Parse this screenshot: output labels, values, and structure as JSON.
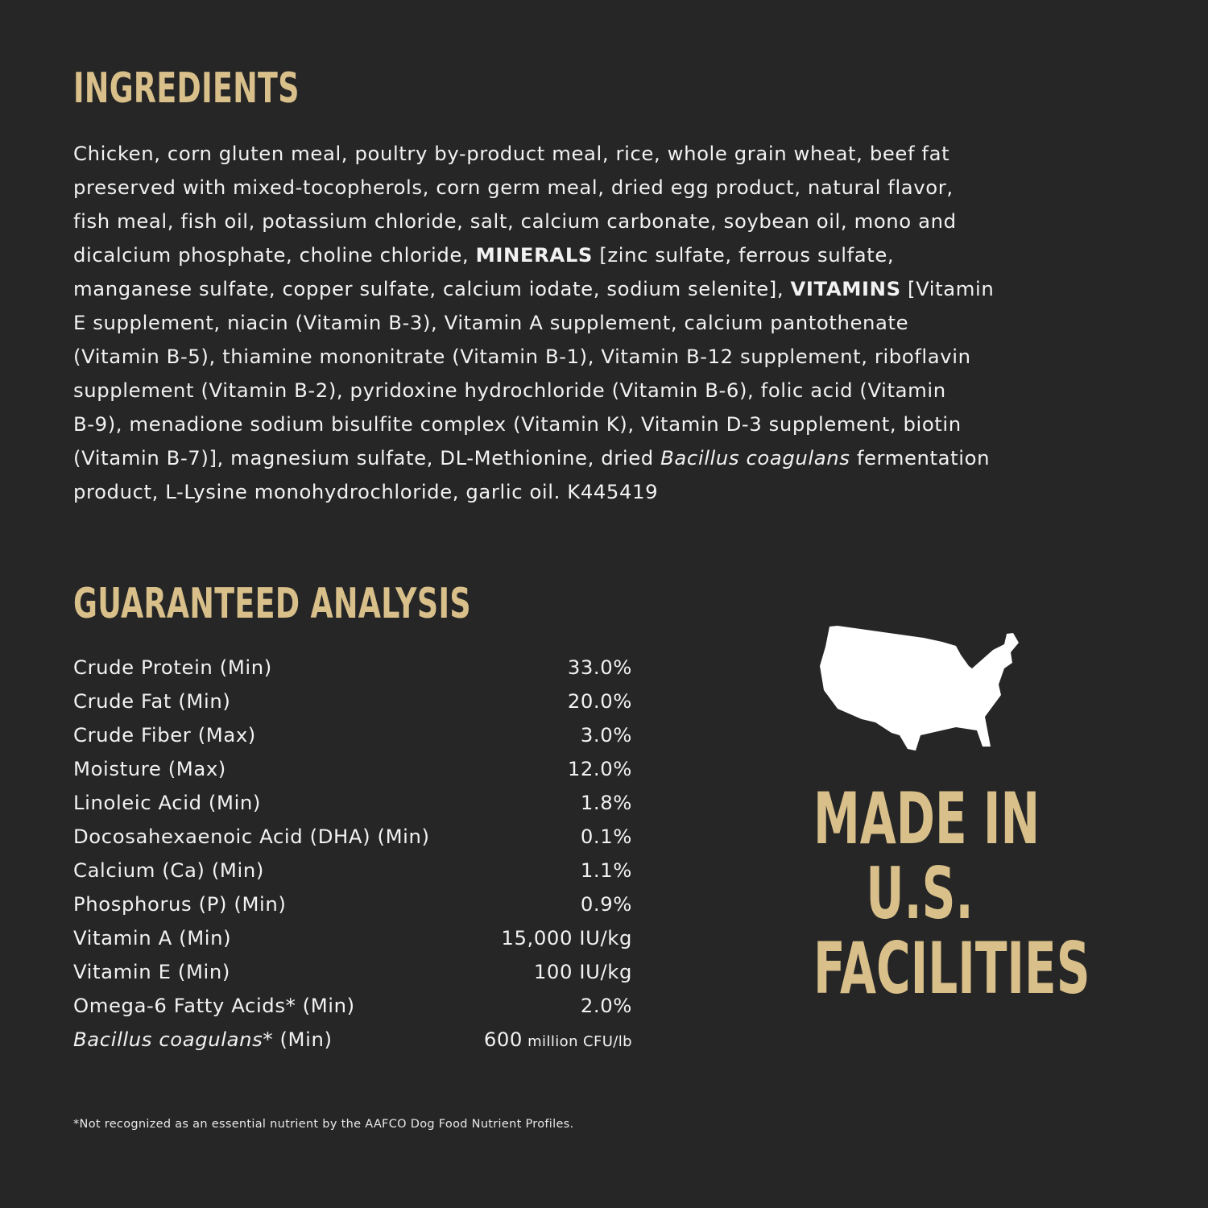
{
  "ingredients": {
    "title": "INGREDIENTS",
    "lines": [
      [
        {
          "t": "Chicken, corn gluten meal, poultry by-product meal, rice, whole grain wheat, beef fat"
        }
      ],
      [
        {
          "t": "preserved with mixed-tocopherols, corn germ meal, dried egg product, natural flavor,"
        }
      ],
      [
        {
          "t": "fish meal, fish oil, potassium chloride, salt, calcium carbonate, soybean oil, mono and"
        }
      ],
      [
        {
          "t": "dicalcium phosphate, choline chloride, "
        },
        {
          "t": "MINERALS",
          "s": "b"
        },
        {
          "t": " [zinc sulfate, ferrous sulfate,"
        }
      ],
      [
        {
          "t": "manganese sulfate, copper sulfate, calcium iodate, sodium selenite], "
        },
        {
          "t": "VITAMINS",
          "s": "b"
        },
        {
          "t": " [Vitamin"
        }
      ],
      [
        {
          "t": "E supplement, niacin (Vitamin B-3), Vitamin A supplement, calcium pantothenate"
        }
      ],
      [
        {
          "t": "(Vitamin B-5), thiamine mononitrate (Vitamin B-1), Vitamin B-12 supplement, riboflavin"
        }
      ],
      [
        {
          "t": "supplement (Vitamin B-2), pyridoxine hydrochloride (Vitamin B-6), folic acid (Vitamin"
        }
      ],
      [
        {
          "t": "B-9), menadione sodium bisulfite complex (Vitamin K), Vitamin D-3 supplement, biotin"
        }
      ],
      [
        {
          "t": "(Vitamin B-7)], magnesium sulfate, DL-Methionine, dried "
        },
        {
          "t": "Bacillus coagulans",
          "s": "i"
        },
        {
          "t": " fermentation"
        }
      ],
      [
        {
          "t": "product, L-Lysine monohydrochloride, garlic oil. K445419"
        }
      ]
    ]
  },
  "analysis": {
    "title": "GUARANTEED ANALYSIS",
    "rows": [
      {
        "label": "Crude Protein (Min)",
        "value": "33.0%"
      },
      {
        "label": "Crude Fat (Min)",
        "value": "20.0%"
      },
      {
        "label": "Crude Fiber (Max)",
        "value": "3.0%"
      },
      {
        "label": "Moisture (Max)",
        "value": "12.0%"
      },
      {
        "label": "Linoleic Acid (Min)",
        "value": "1.8%"
      },
      {
        "label": "Docosahexaenoic Acid (DHA) (Min)",
        "value": "0.1%"
      },
      {
        "label": "Calcium (Ca) (Min)",
        "value": "1.1%"
      },
      {
        "label": "Phosphorus (P) (Min)",
        "value": "0.9%"
      },
      {
        "label": "Vitamin A (Min)",
        "value": "15,000 IU/kg"
      },
      {
        "label": "Vitamin E (Min)",
        "value": "100 IU/kg"
      },
      {
        "label": "Omega-6 Fatty Acids* (Min)",
        "value": "2.0%"
      }
    ],
    "last_row": {
      "label_italic": "Bacillus coagulans",
      "label_rest": "* (Min)",
      "value": "600",
      "unit": " million CFU/lb"
    },
    "footnote": "*Not recognized as an essential nutrient by the AAFCO Dog Food Nutrient Profiles."
  },
  "badge": {
    "icon": "usa-map-icon",
    "lines": [
      "MADE IN",
      "U.S.",
      "FACILITIES"
    ]
  },
  "colors": {
    "background": "#262626",
    "accent": "#d9c08a",
    "text": "#f2f2f2"
  }
}
